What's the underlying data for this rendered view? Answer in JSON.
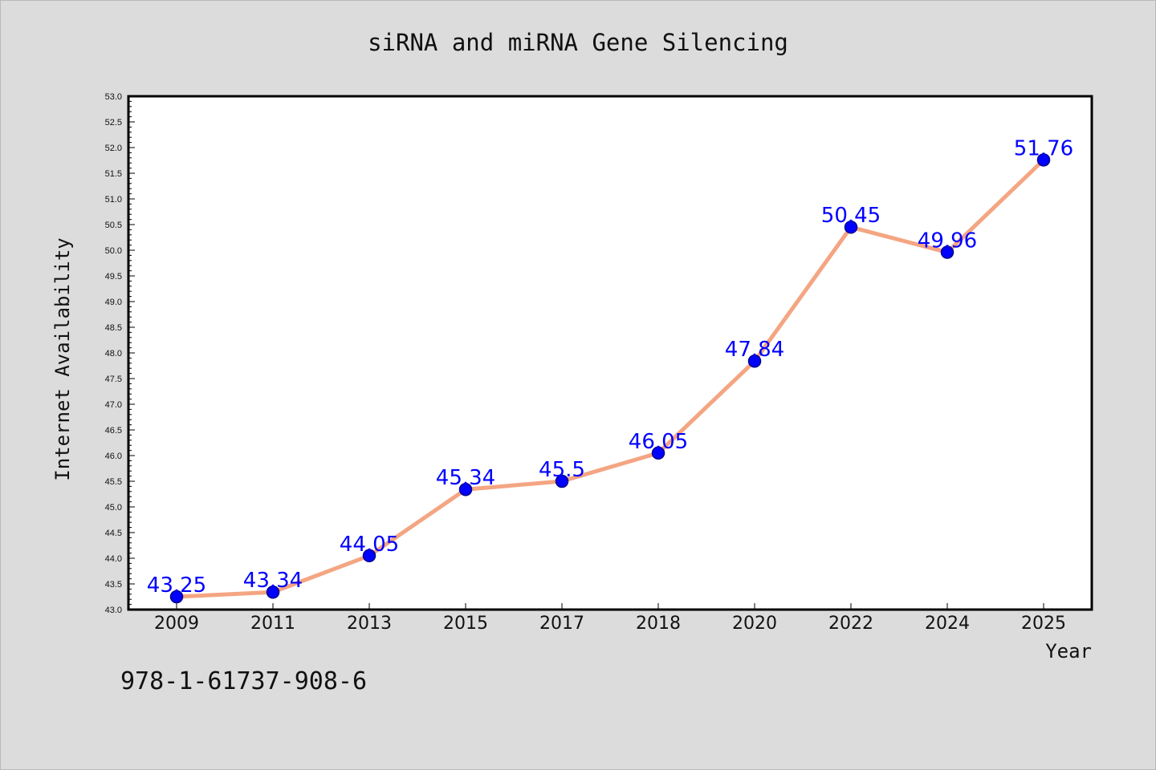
{
  "chart_data": {
    "type": "line",
    "title": "siRNA and miRNA Gene Silencing",
    "xlabel": "Year",
    "ylabel": "Internet Availability",
    "categories": [
      "2009",
      "2011",
      "2013",
      "2015",
      "2017",
      "2018",
      "2020",
      "2022",
      "2024",
      "2025"
    ],
    "values": [
      43.25,
      43.34,
      44.05,
      45.34,
      45.5,
      46.05,
      47.84,
      50.45,
      49.96,
      51.76
    ],
    "data_labels": [
      "43.25",
      "43.34",
      "44.05",
      "45.34",
      "45.5",
      "46.05",
      "47.84",
      "50.45",
      "49.96",
      "51.76"
    ],
    "ylim": [
      43.0,
      53.0
    ],
    "yticks": [
      "43.0",
      "43.5",
      "44.0",
      "44.5",
      "45.0",
      "45.5",
      "46.0",
      "46.5",
      "47.0",
      "47.5",
      "48.0",
      "48.5",
      "49.0",
      "49.5",
      "50.0",
      "50.5",
      "51.0",
      "51.5",
      "52.0",
      "52.5",
      "53.0"
    ],
    "grid": false,
    "legend": "none",
    "colors": {
      "line": "#f4a582",
      "marker": "#0000ff",
      "marker_edge": "#00008b",
      "data_label": "#0000ff",
      "background": "#dcdcdc",
      "plot_background": "#ffffff"
    }
  },
  "footer": {
    "code": "978-1-61737-908-6"
  }
}
